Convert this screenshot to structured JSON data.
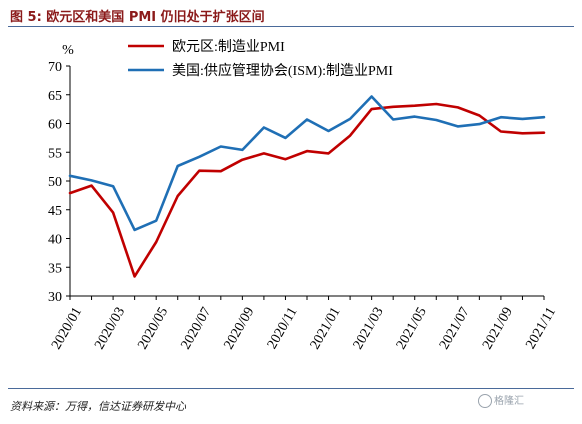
{
  "figure": {
    "title": "图 5: 欧元区和美国 PMI 仍旧处于扩张区间",
    "source": "资料来源：万得，信达证券研发中心",
    "watermark": "格隆汇"
  },
  "chart_data": {
    "type": "line",
    "title": "",
    "ylabel": "%",
    "xlabel": "",
    "ylim": [
      30,
      70
    ],
    "yticks": [
      30,
      35,
      40,
      45,
      50,
      55,
      60,
      65,
      70
    ],
    "grid": false,
    "legend_position": "top",
    "x_start": "2020/01",
    "x_end": "2021/11",
    "xtick_labels": [
      "2020/01",
      "2020/03",
      "2020/05",
      "2020/07",
      "2020/09",
      "2020/11",
      "2021/01",
      "2021/03",
      "2021/05",
      "2021/07",
      "2021/09",
      "2021/11"
    ],
    "series": [
      {
        "name": "欧元区:制造业PMI",
        "color": "#c00000",
        "values": [
          47.9,
          49.2,
          44.5,
          33.4,
          39.4,
          47.4,
          51.8,
          51.7,
          53.7,
          54.8,
          53.8,
          55.2,
          54.8,
          57.9,
          62.5,
          62.9,
          63.1,
          63.4,
          62.8,
          61.4,
          58.6,
          58.3,
          58.4
        ]
      },
      {
        "name": "美国:供应管理协会(ISM):制造业PMI",
        "color": "#1f6fb5",
        "values": [
          50.9,
          50.1,
          49.1,
          41.5,
          43.1,
          52.6,
          54.2,
          56.0,
          55.4,
          59.3,
          57.5,
          60.7,
          58.7,
          60.8,
          64.7,
          60.7,
          61.2,
          60.6,
          59.5,
          59.9,
          61.1,
          60.8,
          61.1
        ]
      }
    ]
  }
}
